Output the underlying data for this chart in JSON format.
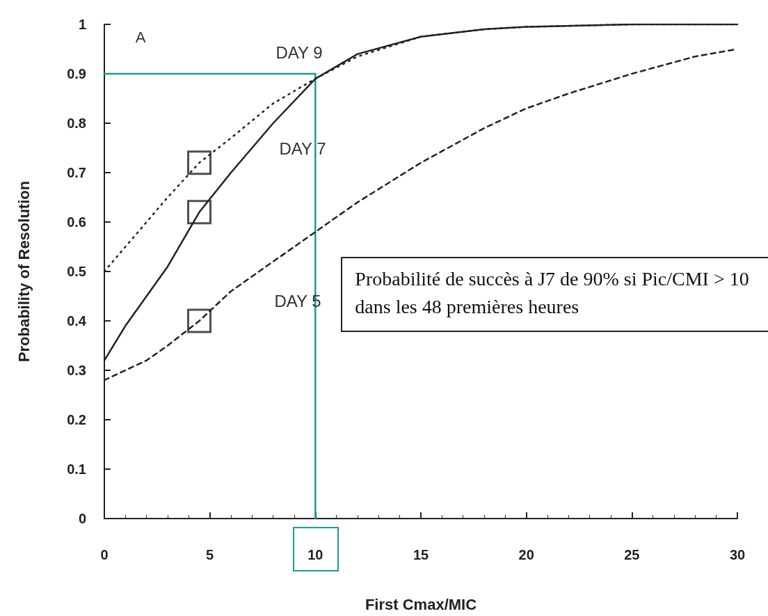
{
  "chart_data": {
    "type": "line",
    "xlabel": "First Cmax/MIC",
    "ylabel": "Probability of Resolution",
    "xlim": [
      0,
      30
    ],
    "xticks": [
      0,
      5,
      10,
      15,
      20,
      25,
      30
    ],
    "ylim": [
      0,
      1
    ],
    "yticks": [
      0,
      0.1,
      0.2,
      0.3,
      0.4,
      0.5,
      0.6,
      0.7,
      0.8,
      0.9,
      1
    ],
    "grid": false,
    "marker": "none",
    "series": [
      {
        "color": "#222222",
        "line_style": "dotted",
        "x": [
          0,
          1,
          2,
          3,
          4.5,
          6,
          8,
          10,
          12,
          15,
          18,
          20,
          25,
          30
        ],
        "values": [
          0.5,
          0.55,
          0.6,
          0.65,
          0.72,
          0.77,
          0.84,
          0.89,
          0.935,
          0.975,
          0.99,
          0.995,
          1,
          1
        ]
      },
      {
        "color": "#222222",
        "line_style": "solid",
        "x": [
          0,
          1,
          2,
          3,
          4.5,
          6,
          8,
          10,
          12,
          15,
          18,
          20,
          25,
          30
        ],
        "values": [
          0.32,
          0.39,
          0.45,
          0.51,
          0.62,
          0.7,
          0.8,
          0.89,
          0.94,
          0.975,
          0.99,
          0.995,
          1,
          1
        ]
      },
      {
        "color": "#222222",
        "line_style": "dashed",
        "x": [
          0,
          1,
          2,
          3,
          4.5,
          6,
          8,
          10,
          12,
          15,
          18,
          20,
          22,
          25,
          28,
          30
        ],
        "values": [
          0.28,
          0.3,
          0.32,
          0.35,
          0.4,
          0.46,
          0.52,
          0.58,
          0.64,
          0.72,
          0.79,
          0.83,
          0.86,
          0.9,
          0.935,
          0.95
        ]
      },
      {
        "type": "scatter",
        "marker": "square",
        "color": "#222222",
        "x": [
          4.5,
          4.5,
          4.5
        ],
        "values": [
          0.72,
          0.62,
          0.4
        ]
      },
      {
        "color": "#1a9a9a",
        "line_style": "solid",
        "x": [
          0,
          10,
          10
        ],
        "values": [
          0.9,
          0.9,
          0
        ]
      }
    ],
    "annotations": [
      "A",
      "DAY 9",
      "DAY 7",
      "DAY 5",
      "Probabilité de succès à J7 de 90% si Pic/CMI > 10 dans les 48 premières heures"
    ]
  }
}
